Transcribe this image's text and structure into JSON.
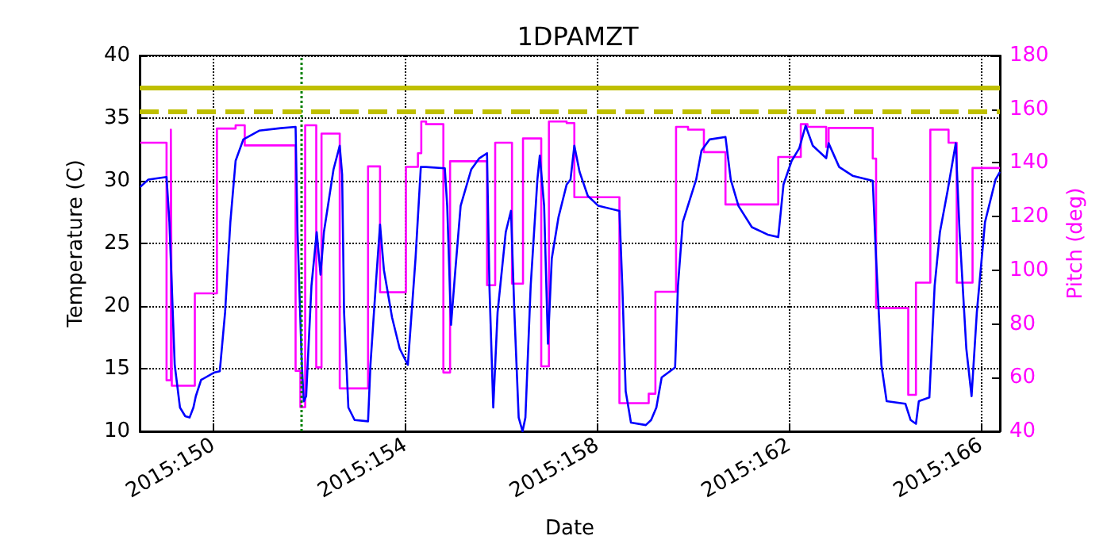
{
  "chart_data": {
    "type": "line",
    "title": "1DPAMZT",
    "xlabel": "Date",
    "ylabel": "Temperature (C)",
    "y2label": "Pitch (deg)",
    "xlim": [
      "2015-05-28T11:02",
      "2015-06-15T09:22"
    ],
    "xticks": [
      {
        "value": "2015-05-30",
        "label": "2015:150"
      },
      {
        "value": "2015-06-03",
        "label": "2015:154"
      },
      {
        "value": "2015-06-07",
        "label": "2015:158"
      },
      {
        "value": "2015-06-11",
        "label": "2015:162"
      },
      {
        "value": "2015-06-15",
        "label": "2015:166"
      }
    ],
    "ylim": [
      10,
      40
    ],
    "yticks": [
      10,
      15,
      20,
      25,
      30,
      35,
      40
    ],
    "y2lim": [
      40,
      180
    ],
    "y2ticks": [
      40,
      60,
      80,
      100,
      120,
      140,
      160,
      180
    ],
    "grid": true,
    "marker": "none",
    "line_style": "solid",
    "ref_lines": [
      {
        "axis": "y",
        "value": 37.5,
        "color": "#bfbf00",
        "line_style": "solid"
      },
      {
        "axis": "y",
        "value": 35.5,
        "color": "#bfbf00",
        "line_style": "dashed"
      },
      {
        "axis": "x",
        "value": "2015-05-31T19:55",
        "color": "#008000",
        "line_style": "dotted"
      }
    ],
    "series": [
      {
        "color": "#0000ff",
        "axis": "y",
        "x": [
          "2015-05-28T11:17",
          "2015-05-28T15:22",
          "2015-05-29T00:29",
          "2015-05-29T01:55",
          "2015-05-29T04:34",
          "2015-05-29T07:12",
          "2015-05-29T09:50",
          "2015-05-29T12:00",
          "2015-05-29T13:55",
          "2015-05-29T15:07",
          "2015-05-29T17:46",
          "2015-05-30T00:29",
          "2015-05-30T03:07",
          "2015-05-30T05:46",
          "2015-05-30T08:24",
          "2015-05-30T11:02",
          "2015-05-30T14:53",
          "2015-05-30T22:48",
          "2015-05-31T09:36",
          "2015-05-31T17:02",
          "2015-05-31T18:00",
          "2015-05-31T20:10",
          "2015-05-31T21:07",
          "2015-05-31T22:19",
          "2015-06-01T00:58",
          "2015-06-01T03:36",
          "2015-06-01T05:31",
          "2015-06-01T07:12",
          "2015-06-01T12:00",
          "2015-06-01T15:07",
          "2015-06-01T16:19",
          "2015-06-01T17:17",
          "2015-06-01T19:26",
          "2015-06-01T22:34",
          "2015-06-02T05:17",
          "2015-06-02T06:29",
          "2015-06-02T09:07",
          "2015-06-02T11:17",
          "2015-06-02T13:12",
          "2015-06-02T17:17",
          "2015-06-02T21:07",
          "2015-06-03T01:12",
          "2015-06-03T05:02",
          "2015-06-03T07:41",
          "2015-06-03T10:19",
          "2015-06-03T19:41",
          "2015-06-03T20:53",
          "2015-06-03T22:48",
          "2015-06-04T00:58",
          "2015-06-04T03:36",
          "2015-06-04T08:53",
          "2015-06-04T12:58",
          "2015-06-04T16:48",
          "2015-06-04T18:00",
          "2015-06-04T19:55",
          "2015-06-04T22:05",
          "2015-06-05T02:10",
          "2015-06-05T04:48",
          "2015-06-05T06:29",
          "2015-06-05T08:38",
          "2015-06-05T10:34",
          "2015-06-05T12:00",
          "2015-06-05T14:38",
          "2015-06-05T18:00",
          "2015-06-05T19:12",
          "2015-06-05T21:22",
          "2015-06-05T23:17",
          "2015-06-06T01:12",
          "2015-06-06T04:34",
          "2015-06-06T08:38",
          "2015-06-06T10:34",
          "2015-06-06T12:29",
          "2015-06-06T15:07",
          "2015-06-06T19:12",
          "2015-06-07T00:29",
          "2015-06-07T11:02",
          "2015-06-07T12:29",
          "2015-06-07T14:10",
          "2015-06-07T16:48",
          "2015-06-08T00:14",
          "2015-06-08T02:53",
          "2015-06-08T05:31",
          "2015-06-08T08:10",
          "2015-06-08T14:53",
          "2015-06-08T16:19",
          "2015-06-08T18:43",
          "2015-06-09T01:26",
          "2015-06-09T04:05",
          "2015-06-09T08:10",
          "2015-06-09T16:05",
          "2015-06-09T18:43",
          "2015-06-09T22:34",
          "2015-06-10T05:17",
          "2015-06-10T13:12",
          "2015-06-10T18:29",
          "2015-06-10T21:07",
          "2015-06-11T01:12",
          "2015-06-11T05:02",
          "2015-06-11T08:10",
          "2015-06-11T11:46",
          "2015-06-11T18:29",
          "2015-06-11T19:41",
          "2015-06-12T00:58",
          "2015-06-12T07:41",
          "2015-06-12T17:46",
          "2015-06-12T19:26",
          "2015-06-12T22:05",
          "2015-06-13T00:43",
          "2015-06-13T10:05",
          "2015-06-13T12:43",
          "2015-06-13T15:22",
          "2015-06-13T16:48",
          "2015-06-13T22:05",
          "2015-06-14T00:43",
          "2015-06-14T03:22",
          "2015-06-14T07:12",
          "2015-06-14T11:17",
          "2015-06-14T13:12",
          "2015-06-14T16:34",
          "2015-06-14T19:12",
          "2015-06-14T21:50",
          "2015-06-15T01:55",
          "2015-06-15T07:12",
          "2015-06-15T09:22"
        ],
        "values": [
          29.5,
          30.1,
          30.3,
          26.7,
          15.3,
          11.9,
          11.2,
          11.1,
          11.9,
          12.8,
          14.1,
          14.7,
          14.8,
          19.5,
          26.7,
          31.6,
          33.3,
          34.0,
          34.2,
          34.3,
          25.9,
          15.3,
          12.4,
          12.8,
          21.6,
          25.9,
          22.5,
          25.9,
          30.9,
          32.8,
          30.5,
          19.5,
          11.9,
          10.9,
          10.8,
          15.3,
          21.6,
          26.5,
          22.9,
          19.1,
          16.6,
          15.3,
          23.8,
          31.1,
          31.1,
          31.0,
          28.0,
          18.5,
          22.9,
          28.0,
          30.9,
          31.8,
          32.2,
          21.6,
          11.9,
          19.5,
          25.9,
          27.6,
          19.5,
          11.1,
          10.0,
          11.1,
          21.6,
          30.1,
          32.0,
          28.0,
          17.0,
          23.8,
          27.1,
          29.7,
          30.1,
          32.8,
          30.7,
          28.8,
          28.0,
          27.6,
          21.6,
          13.2,
          10.7,
          10.5,
          10.9,
          11.9,
          14.3,
          15.1,
          21.6,
          26.7,
          30.1,
          32.4,
          33.3,
          33.5,
          30.1,
          28.0,
          26.3,
          25.7,
          25.5,
          29.7,
          31.6,
          32.6,
          34.4,
          32.8,
          31.8,
          33.0,
          31.1,
          30.4,
          30.0,
          23.8,
          15.3,
          12.4,
          12.2,
          10.9,
          10.6,
          12.4,
          12.7,
          21.6,
          25.9,
          29.2,
          33.0,
          25.9,
          16.6,
          12.8,
          19.5,
          26.7,
          30.1,
          30.7
        ]
      },
      {
        "type": "step",
        "color": "#ff00ff",
        "axis": "y2",
        "x": [
          "2015-05-28T11:17",
          "2015-05-29T00:29",
          "2015-05-29T02:38",
          "2015-05-29T03:07",
          "2015-05-29T14:38",
          "2015-05-30T01:41",
          "2015-05-30T11:02",
          "2015-05-30T15:36",
          "2015-05-31T17:02",
          "2015-05-31T19:26",
          "2015-05-31T21:50",
          "2015-06-01T03:22",
          "2015-06-01T06:00",
          "2015-06-01T15:07",
          "2015-06-02T05:17",
          "2015-06-02T11:17",
          "2015-06-03T00:14",
          "2015-06-03T06:14",
          "2015-06-03T07:55",
          "2015-06-03T10:19",
          "2015-06-03T18:58",
          "2015-06-03T22:19",
          "2015-06-04T16:48",
          "2015-06-04T20:53",
          "2015-06-05T05:17",
          "2015-06-05T10:48",
          "2015-06-05T19:55",
          "2015-06-05T23:46",
          "2015-06-06T08:38",
          "2015-06-06T12:29",
          "2015-06-07T11:02",
          "2015-06-08T01:41",
          "2015-06-08T05:02",
          "2015-06-08T15:22",
          "2015-06-08T21:22",
          "2015-06-09T05:17",
          "2015-06-09T16:05",
          "2015-06-10T18:29",
          "2015-06-11T05:46",
          "2015-06-11T09:07",
          "2015-06-11T18:29",
          "2015-06-11T19:41",
          "2015-06-12T17:46",
          "2015-06-12T19:26",
          "2015-06-13T11:31",
          "2015-06-13T15:22",
          "2015-06-13T22:34",
          "2015-06-14T07:41",
          "2015-06-14T11:46",
          "2015-06-14T19:41",
          "2015-06-15T09:22"
        ],
        "values": [
          147.5,
          59,
          152.4,
          57,
          91.4,
          152.8,
          154,
          146.5,
          62.5,
          49,
          154,
          63.8,
          150.9,
          56,
          138.7,
          91.8,
          138.5,
          143.6,
          155.4,
          154.4,
          61.9,
          140.6,
          94.4,
          147.5,
          95,
          149.1,
          64.2,
          155.4,
          154.8,
          127.2,
          50.5,
          54,
          92,
          153.4,
          152.4,
          144,
          124.5,
          142.2,
          154.4,
          153.4,
          145.9,
          153,
          141.6,
          85.9,
          53.6,
          95.4,
          152.4,
          147.5,
          95.4,
          138.1,
          138.1
        ]
      }
    ]
  }
}
